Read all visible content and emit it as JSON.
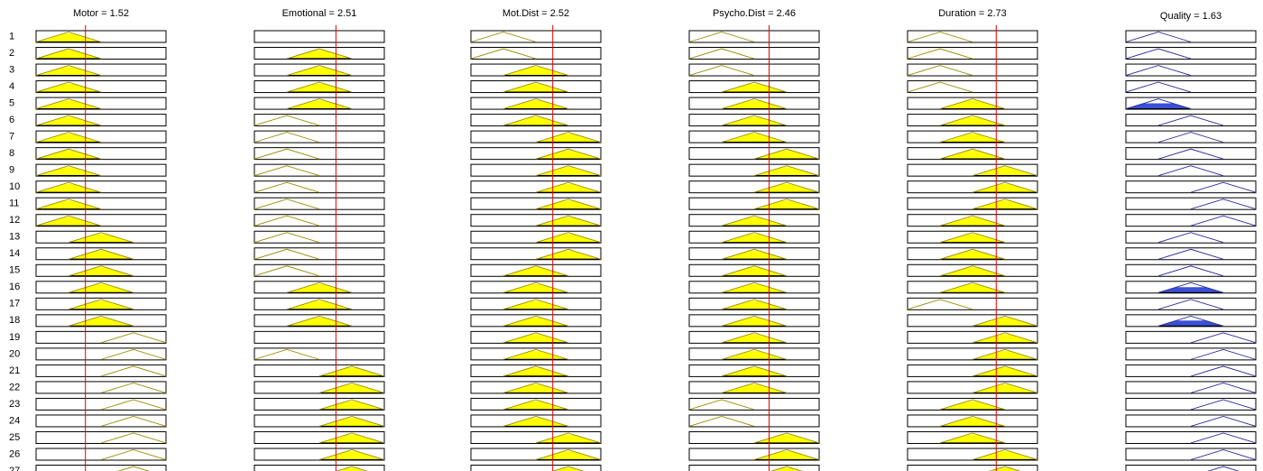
{
  "columns": [
    {
      "title": "Motor = 1.52",
      "input": 1.52,
      "xlim": [
        0,
        4
      ],
      "output": false
    },
    {
      "title": "Emotional = 2.51",
      "input": 2.51,
      "xlim": [
        0,
        4
      ],
      "output": false
    },
    {
      "title": "Mot.Dist = 2.52",
      "input": 2.52,
      "xlim": [
        0,
        4
      ],
      "output": false
    },
    {
      "title": "Psycho.Dist = 2.46",
      "input": 2.46,
      "xlim": [
        0,
        4
      ],
      "output": false
    },
    {
      "title": "Duration = 2.73",
      "input": 2.73,
      "xlim": [
        0,
        4
      ],
      "output": false
    },
    {
      "title": "Quality = 1.63",
      "xlim": [
        0,
        4
      ],
      "output": true
    }
  ],
  "mfs": [
    [
      0,
      1,
      2
    ],
    [
      1,
      2,
      3
    ],
    [
      2,
      3,
      4
    ]
  ],
  "colors": {
    "input_line": "#9a8c00",
    "input_fill": "#ffff00",
    "output_line": "#2a2aa0",
    "output_fill": "#3a50d8",
    "marker": "#e00000"
  },
  "rules": [
    {
      "label": 1,
      "mf": [
        0,
        null,
        0,
        0,
        0,
        0
      ],
      "fired": [
        1,
        0,
        0,
        0,
        0,
        0
      ]
    },
    {
      "label": 2,
      "mf": [
        0,
        1,
        0,
        0,
        0,
        0
      ],
      "fired": [
        1,
        1,
        0,
        0,
        0,
        0
      ]
    },
    {
      "label": 3,
      "mf": [
        0,
        1,
        1,
        0,
        0,
        0
      ],
      "fired": [
        1,
        1,
        1,
        0,
        0,
        0
      ]
    },
    {
      "label": 4,
      "mf": [
        0,
        1,
        1,
        1,
        0,
        0
      ],
      "fired": [
        1,
        1,
        1,
        1,
        0,
        0
      ]
    },
    {
      "label": 5,
      "mf": [
        0,
        1,
        1,
        1,
        1,
        0
      ],
      "fired": [
        1,
        1,
        1,
        1,
        1,
        1
      ]
    },
    {
      "label": 6,
      "mf": [
        0,
        0,
        1,
        1,
        1,
        1
      ],
      "fired": [
        1,
        0,
        1,
        1,
        1,
        0
      ]
    },
    {
      "label": 7,
      "mf": [
        0,
        0,
        2,
        1,
        1,
        1
      ],
      "fired": [
        1,
        0,
        1,
        1,
        1,
        0
      ]
    },
    {
      "label": 8,
      "mf": [
        0,
        0,
        2,
        2,
        1,
        1
      ],
      "fired": [
        1,
        0,
        1,
        1,
        1,
        0
      ]
    },
    {
      "label": 9,
      "mf": [
        0,
        0,
        2,
        2,
        2,
        1
      ],
      "fired": [
        1,
        0,
        1,
        1,
        1,
        0
      ]
    },
    {
      "label": 10,
      "mf": [
        0,
        0,
        2,
        2,
        2,
        2
      ],
      "fired": [
        1,
        0,
        1,
        1,
        1,
        0
      ]
    },
    {
      "label": 11,
      "mf": [
        0,
        0,
        2,
        2,
        2,
        2
      ],
      "fired": [
        1,
        0,
        1,
        1,
        1,
        0
      ]
    },
    {
      "label": 12,
      "mf": [
        0,
        0,
        2,
        1,
        1,
        2
      ],
      "fired": [
        1,
        0,
        1,
        1,
        1,
        0
      ]
    },
    {
      "label": 13,
      "mf": [
        1,
        0,
        2,
        1,
        1,
        1
      ],
      "fired": [
        1,
        0,
        1,
        1,
        1,
        0
      ]
    },
    {
      "label": 14,
      "mf": [
        1,
        0,
        2,
        1,
        1,
        1
      ],
      "fired": [
        1,
        0,
        1,
        1,
        1,
        0
      ]
    },
    {
      "label": 15,
      "mf": [
        1,
        0,
        1,
        1,
        1,
        1
      ],
      "fired": [
        1,
        0,
        1,
        1,
        1,
        0
      ]
    },
    {
      "label": 16,
      "mf": [
        1,
        1,
        1,
        1,
        1,
        1
      ],
      "fired": [
        1,
        1,
        1,
        1,
        1,
        1
      ]
    },
    {
      "label": 17,
      "mf": [
        1,
        1,
        1,
        1,
        0,
        1
      ],
      "fired": [
        1,
        1,
        1,
        1,
        0,
        0
      ]
    },
    {
      "label": 18,
      "mf": [
        1,
        1,
        1,
        1,
        2,
        1
      ],
      "fired": [
        1,
        1,
        1,
        1,
        1,
        1
      ]
    },
    {
      "label": 19,
      "mf": [
        2,
        null,
        1,
        1,
        2,
        2
      ],
      "fired": [
        0,
        0,
        1,
        1,
        1,
        0
      ]
    },
    {
      "label": 20,
      "mf": [
        2,
        0,
        1,
        1,
        2,
        2
      ],
      "fired": [
        0,
        0,
        1,
        1,
        1,
        0
      ]
    },
    {
      "label": 21,
      "mf": [
        2,
        2,
        1,
        1,
        2,
        2
      ],
      "fired": [
        0,
        1,
        1,
        1,
        1,
        0
      ]
    },
    {
      "label": 22,
      "mf": [
        2,
        2,
        1,
        1,
        2,
        2
      ],
      "fired": [
        0,
        1,
        1,
        1,
        1,
        0
      ]
    },
    {
      "label": 23,
      "mf": [
        2,
        2,
        1,
        0,
        1,
        2
      ],
      "fired": [
        0,
        1,
        1,
        0,
        1,
        0
      ]
    },
    {
      "label": 24,
      "mf": [
        2,
        2,
        1,
        0,
        1,
        2
      ],
      "fired": [
        0,
        1,
        1,
        0,
        1,
        0
      ]
    },
    {
      "label": 25,
      "mf": [
        2,
        2,
        2,
        2,
        1,
        2
      ],
      "fired": [
        0,
        1,
        1,
        1,
        1,
        0
      ]
    },
    {
      "label": 26,
      "mf": [
        2,
        2,
        2,
        2,
        2,
        2
      ],
      "fired": [
        0,
        1,
        1,
        1,
        1,
        0
      ]
    },
    {
      "label": 27,
      "mf": [
        2,
        2,
        2,
        2,
        2,
        2
      ],
      "fired": [
        0,
        1,
        1,
        1,
        1,
        0
      ]
    }
  ]
}
